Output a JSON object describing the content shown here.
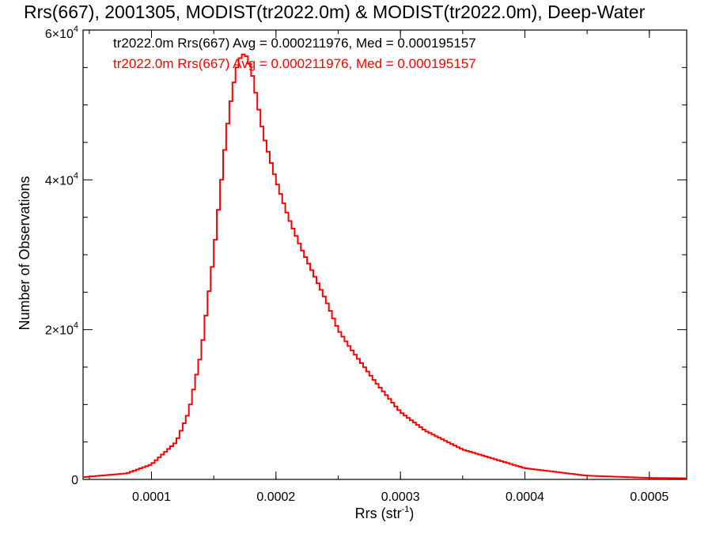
{
  "chart_data": {
    "type": "histogram",
    "title": "Rrs(667), 2001305, MODIST(tr2022.0m) & MODIST(tr2022.0m), Deep-Water",
    "xlabel": "Rrs (str",
    "xlabel_sup": "-1",
    "xlabel_end": ")",
    "ylabel": "Number of Observations",
    "xlim": [
      4.5e-05,
      0.00053
    ],
    "ylim": [
      0,
      60000
    ],
    "x_ticks": [
      0.0001,
      0.0002,
      0.0003,
      0.0004,
      0.0005
    ],
    "x_tick_labels": [
      "0.0001",
      "0.0002",
      "0.0003",
      "0.0004",
      "0.0005"
    ],
    "y_ticks": [
      0,
      20000,
      40000,
      60000
    ],
    "y_tick_labels": [
      {
        "base": "0",
        "exp": ""
      },
      {
        "base": "2×10",
        "exp": "4"
      },
      {
        "base": "4×10",
        "exp": "4"
      },
      {
        "base": "6×10",
        "exp": "4"
      }
    ],
    "annotations": [
      {
        "text": "tr2022.0m Rrs(667) Avg = 0.000211976, Med = 0.000195157",
        "color": "#000000"
      },
      {
        "text": "tr2022.0m Rrs(667) Avg = 0.000211976, Med = 0.000195157",
        "color": "#ff0000"
      }
    ],
    "series": [
      {
        "color": "#ff0000",
        "profile_x": [
          4.5e-05,
          8e-05,
          0.0001,
          0.00012,
          0.00013,
          0.00014,
          0.00015,
          0.00016,
          0.000165,
          0.00017,
          0.000175,
          0.00018,
          0.00019,
          0.0002,
          0.00021,
          0.00022,
          0.00023,
          0.00024,
          0.00025,
          0.00026,
          0.00028,
          0.0003,
          0.00032,
          0.00035,
          0.0004,
          0.00045,
          0.0005,
          0.00053
        ],
        "profile_y": [
          300,
          800,
          2000,
          5000,
          9000,
          17000,
          30000,
          46000,
          52000,
          56000,
          57000,
          55000,
          46000,
          40000,
          35000,
          31000,
          27500,
          24000,
          20000,
          17500,
          13000,
          9000,
          6500,
          4000,
          1500,
          500,
          200,
          150
        ]
      }
    ]
  }
}
